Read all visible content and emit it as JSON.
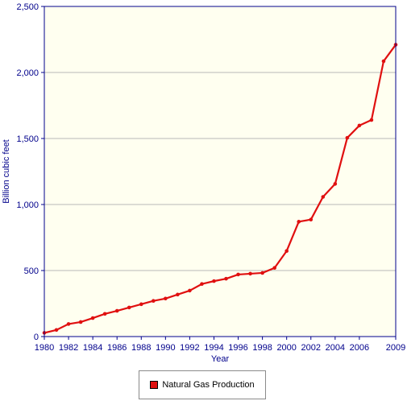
{
  "chart_data": {
    "type": "line",
    "title": "",
    "xlabel": "Year",
    "ylabel": "Billion cubic feet",
    "xlim": [
      1980,
      2009
    ],
    "ylim": [
      0,
      2500
    ],
    "x_ticks": [
      1980,
      1982,
      1984,
      1986,
      1988,
      1990,
      1992,
      1994,
      1996,
      1998,
      2000,
      2002,
      2004,
      2006,
      2009
    ],
    "y_ticks": [
      0,
      500,
      1000,
      1500,
      2000,
      2500
    ],
    "y_tick_labels": [
      "0",
      "500",
      "1,000",
      "1,500",
      "2,000",
      "2,500"
    ],
    "grid": "horizontal",
    "legend_position": "bottom",
    "plot_background": "#fffff0",
    "axis_color": "#00008b",
    "series": [
      {
        "name": "Natural Gas Production",
        "color": "#e01010",
        "x": [
          1980,
          1981,
          1982,
          1983,
          1984,
          1985,
          1986,
          1987,
          1988,
          1989,
          1990,
          1991,
          1992,
          1993,
          1994,
          1995,
          1996,
          1997,
          1998,
          1999,
          2000,
          2001,
          2002,
          2003,
          2004,
          2005,
          2006,
          2007,
          2008,
          2009
        ],
        "values": [
          28,
          50,
          95,
          110,
          140,
          172,
          195,
          220,
          245,
          270,
          288,
          318,
          348,
          398,
          420,
          438,
          470,
          476,
          482,
          520,
          648,
          870,
          886,
          1058,
          1156,
          1505,
          1598,
          1640,
          2085,
          2210
        ]
      }
    ]
  }
}
